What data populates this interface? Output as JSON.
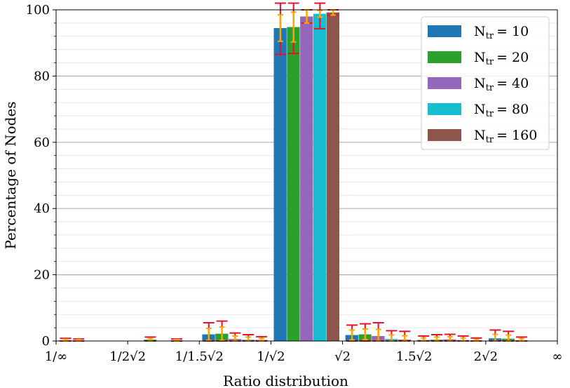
{
  "chart_data": {
    "type": "bar",
    "xlabel": "Ratio distribution",
    "ylabel": "Percentage of Nodes",
    "ylim": [
      0,
      100
    ],
    "yticks": [
      "0",
      "20",
      "40",
      "60",
      "80",
      "100"
    ],
    "xticks": [
      "1/∞",
      "1/2√2",
      "1/1.5√2",
      "1/√2",
      "√2",
      "1.5√2",
      "2√2",
      "∞"
    ],
    "grid": "horizontal, major and minor",
    "legend_position": "top-right",
    "error_bars": "yes (orange inner, red outer)",
    "bins": [
      "1/∞–1/2√2",
      "1/2√2–1/1.5√2",
      "1/1.5√2–1/√2",
      "1/√2–√2",
      "√2–1.5√2",
      "1.5√2–2√2",
      "2√2–∞"
    ],
    "series": [
      {
        "name_main": "N",
        "name_sub": "tr",
        "name_value": "= 10",
        "color": "#1f77b4",
        "values": [
          0.2,
          0.0,
          2.0,
          94.5,
          1.8,
          0.3,
          0.8
        ]
      },
      {
        "name_main": "N",
        "name_sub": "tr",
        "name_value": "= 20",
        "color": "#2ca02c",
        "values": [
          0.1,
          0.4,
          2.2,
          94.8,
          2.0,
          0.4,
          0.7
        ]
      },
      {
        "name_main": "N",
        "name_sub": "tr",
        "name_value": "= 40",
        "color": "#9467bd",
        "values": [
          0.0,
          0.0,
          0.6,
          98.0,
          1.5,
          0.5,
          0.2
        ]
      },
      {
        "name_main": "N",
        "name_sub": "tr",
        "name_value": "= 80",
        "color": "#17becf",
        "values": [
          0.0,
          0.1,
          0.4,
          98.8,
          0.6,
          0.3,
          0.0
        ]
      },
      {
        "name_main": "N",
        "name_sub": "tr",
        "name_value": "= 160",
        "color": "#8c564b",
        "values": [
          0.0,
          0.0,
          0.3,
          99.2,
          0.4,
          0.1,
          0.0
        ]
      }
    ],
    "errors_red": [
      [
        0.6,
        0.0,
        3.5,
        8.0,
        3.0,
        1.2,
        2.5
      ],
      [
        0.5,
        0.8,
        3.8,
        8.0,
        3.2,
        1.5,
        2.2
      ],
      [
        0.0,
        0.0,
        1.8,
        2.0,
        4.0,
        1.5,
        1.0
      ],
      [
        0.0,
        0.5,
        1.5,
        4.5,
        2.5,
        1.2,
        0.0
      ],
      [
        0.0,
        0.0,
        1.0,
        0.8,
        2.5,
        0.8,
        0.0
      ]
    ],
    "errors_orange": [
      [
        0.3,
        0.0,
        1.8,
        4.0,
        1.5,
        0.6,
        1.2
      ],
      [
        0.3,
        0.4,
        2.0,
        4.5,
        1.6,
        0.8,
        1.1
      ],
      [
        0.0,
        0.0,
        0.9,
        2.0,
        2.0,
        0.8,
        0.5
      ],
      [
        0.0,
        0.3,
        0.8,
        1.0,
        1.2,
        0.6,
        0.0
      ],
      [
        0.0,
        0.0,
        0.5,
        0.8,
        1.2,
        0.4,
        0.0
      ]
    ]
  }
}
